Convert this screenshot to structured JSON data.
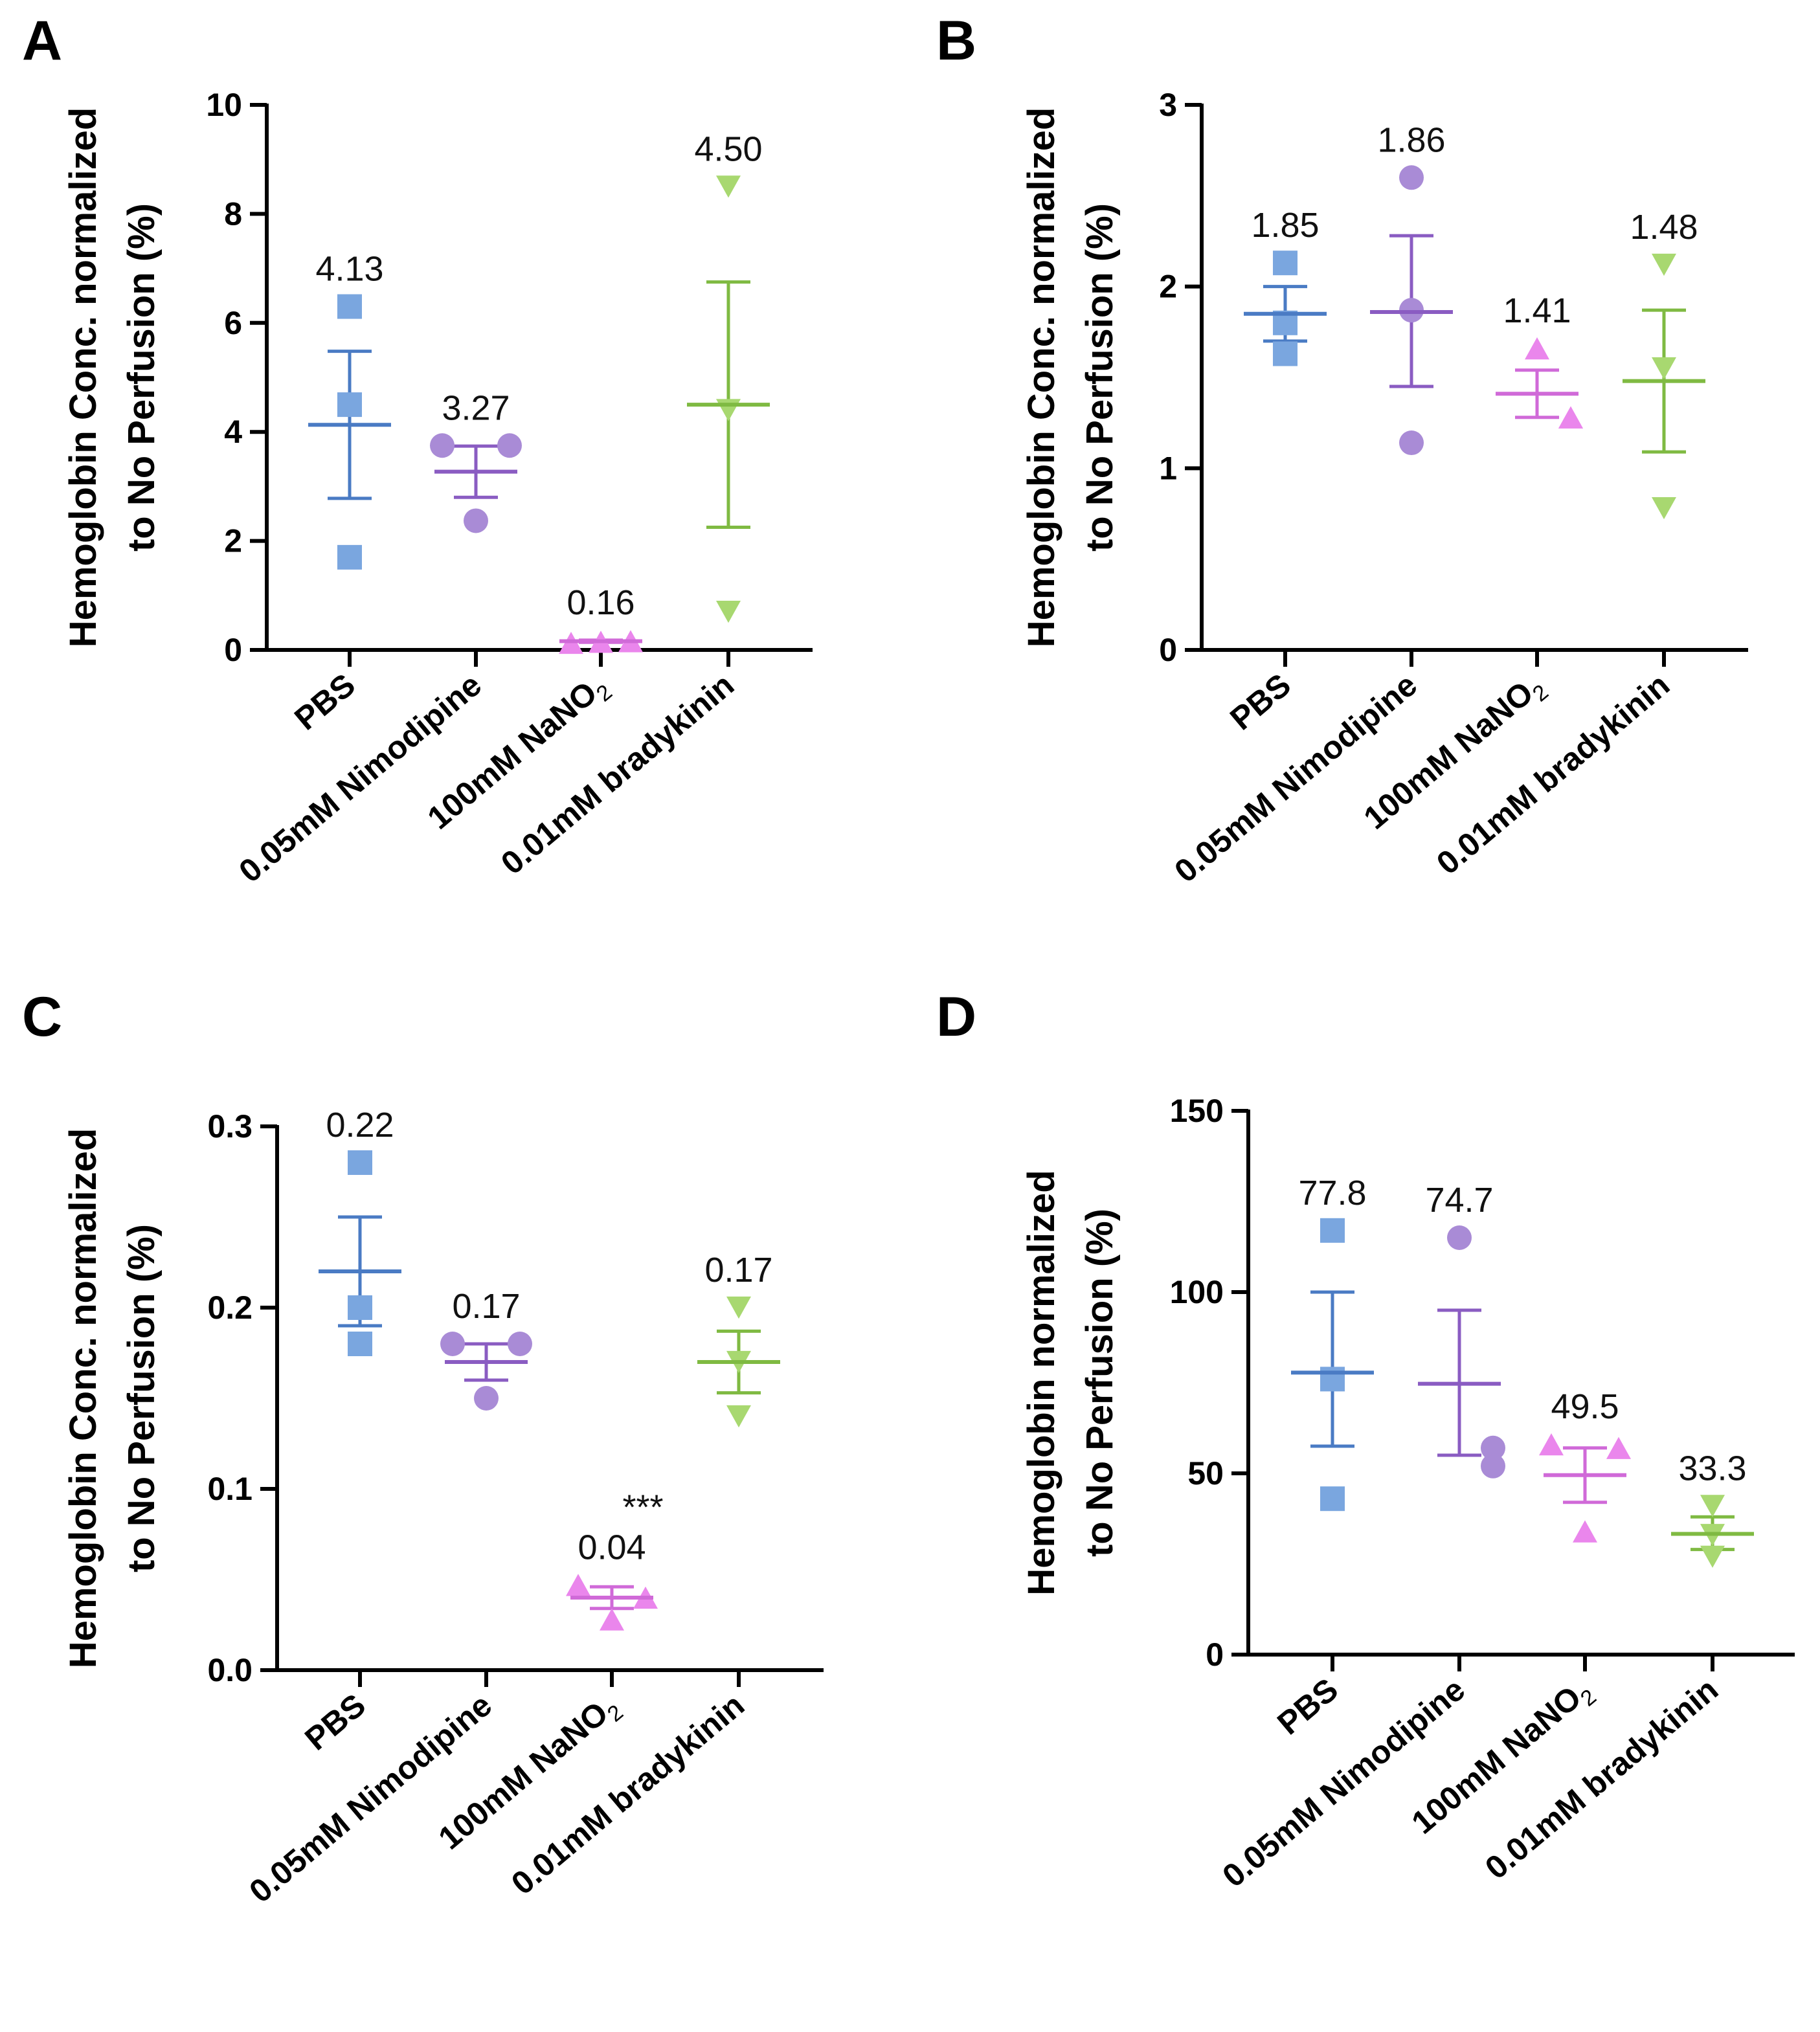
{
  "colors": {
    "PBS": "#4a7bc4",
    "PBS_marker": "#7aa6df",
    "Nimodipine": "#8a5cc2",
    "Nimodipine_marker": "#a98bd6",
    "NaNO2": "#d06ad8",
    "NaNO2_marker": "#ea86ec",
    "bradykinin": "#7fba42",
    "bradykinin_marker": "#a8d870",
    "axis": "#000000"
  },
  "categories": [
    "PBS",
    "0.05mM Nimodipine",
    "100mM NaNO",
    "0.01mM bradykinin"
  ],
  "category_subscript": "2",
  "chart_data": [
    {
      "type": "scatter",
      "panel": "A",
      "ylabel_line1": "Hemoglobin Conc. normalized",
      "ylabel_line2": "to No Perfusion (%)",
      "ylim": [
        0,
        10
      ],
      "yticks": [
        "0",
        "2",
        "4",
        "6",
        "8",
        "10"
      ],
      "series": [
        {
          "name": "PBS",
          "marker": "square",
          "points": [
            6.3,
            4.5,
            1.7
          ],
          "mean": 4.13,
          "sem_low": 2.78,
          "sem_high": 5.48,
          "label": "4.13"
        },
        {
          "name": "0.05mM Nimodipine",
          "marker": "circle",
          "points": [
            3.75,
            3.75,
            2.37
          ],
          "mean": 3.27,
          "sem_low": 2.8,
          "sem_high": 3.74,
          "label": "3.27"
        },
        {
          "name": "100mM NaNO2",
          "marker": "triangle-up",
          "points": [
            0.13,
            0.15,
            0.16
          ],
          "mean": 0.16,
          "sem_low": 0.14,
          "sem_high": 0.18,
          "label": "0.16"
        },
        {
          "name": "0.01mM bradykinin",
          "marker": "triangle-down",
          "points": [
            8.5,
            4.4,
            0.7
          ],
          "mean": 4.5,
          "sem_low": 2.25,
          "sem_high": 6.75,
          "label": "4.50"
        }
      ]
    },
    {
      "type": "scatter",
      "panel": "B",
      "ylabel_line1": "Hemoglobin Conc. normalized",
      "ylabel_line2": "to No Perfusion (%)",
      "ylim": [
        0,
        3
      ],
      "yticks": [
        "0",
        "1",
        "2",
        "3"
      ],
      "series": [
        {
          "name": "PBS",
          "marker": "square",
          "points": [
            2.13,
            1.8,
            1.63
          ],
          "mean": 1.85,
          "sem_low": 1.7,
          "sem_high": 2.0,
          "label": "1.85"
        },
        {
          "name": "0.05mM Nimodipine",
          "marker": "circle",
          "points": [
            2.6,
            1.87,
            1.14
          ],
          "mean": 1.86,
          "sem_low": 1.45,
          "sem_high": 2.28,
          "label": "1.86"
        },
        {
          "name": "100mM NaNO2",
          "marker": "triangle-up",
          "points": [
            1.66,
            1.28,
            1.28
          ],
          "mean": 1.41,
          "sem_low": 1.28,
          "sem_high": 1.54,
          "label": "1.41"
        },
        {
          "name": "0.01mM bradykinin",
          "marker": "triangle-down",
          "points": [
            2.12,
            1.55,
            0.78
          ],
          "mean": 1.48,
          "sem_low": 1.09,
          "sem_high": 1.87,
          "label": "1.48"
        }
      ]
    },
    {
      "type": "scatter",
      "panel": "C",
      "ylabel_line1": "Hemoglobin Conc. normalized",
      "ylabel_line2": "to No Perfusion (%)",
      "ylim": [
        0,
        0.3
      ],
      "yticks": [
        "0.0",
        "0.1",
        "0.2",
        "0.3"
      ],
      "significance": "***",
      "significance_index": 2,
      "series": [
        {
          "name": "PBS",
          "marker": "square",
          "points": [
            0.28,
            0.2,
            0.18
          ],
          "mean": 0.22,
          "sem_low": 0.19,
          "sem_high": 0.25,
          "label": "0.22"
        },
        {
          "name": "0.05mM Nimodipine",
          "marker": "circle",
          "points": [
            0.18,
            0.18,
            0.15
          ],
          "mean": 0.17,
          "sem_low": 0.16,
          "sem_high": 0.18,
          "label": "0.17"
        },
        {
          "name": "100mM NaNO2",
          "marker": "triangle-up",
          "points": [
            0.047,
            0.028,
            0.04
          ],
          "mean": 0.04,
          "sem_low": 0.034,
          "sem_high": 0.046,
          "label": "0.04"
        },
        {
          "name": "0.01mM bradykinin",
          "marker": "triangle-down",
          "points": [
            0.2,
            0.17,
            0.14
          ],
          "mean": 0.17,
          "sem_low": 0.153,
          "sem_high": 0.187,
          "label": "0.17"
        }
      ]
    },
    {
      "type": "scatter",
      "panel": "D",
      "ylabel_line1": "Hemoglobin normalized",
      "ylabel_line2": "to No Perfusion (%)",
      "ylim": [
        0,
        150
      ],
      "yticks": [
        "0",
        "50",
        "100",
        "150"
      ],
      "series": [
        {
          "name": "PBS",
          "marker": "square",
          "points": [
            117,
            76,
            43
          ],
          "mean": 77.8,
          "sem_low": 57.5,
          "sem_high": 100,
          "label": "77.8"
        },
        {
          "name": "0.05mM Nimodipine",
          "marker": "circle",
          "points": [
            115,
            57,
            52
          ],
          "mean": 74.7,
          "sem_low": 55,
          "sem_high": 95,
          "label": "74.7"
        },
        {
          "name": "100mM NaNO2",
          "marker": "triangle-up",
          "points": [
            58,
            57,
            34
          ],
          "mean": 49.5,
          "sem_low": 42,
          "sem_high": 57,
          "label": "49.5"
        },
        {
          "name": "0.01mM bradykinin",
          "marker": "triangle-down",
          "points": [
            41,
            33,
            27
          ],
          "mean": 33.3,
          "sem_low": 29,
          "sem_high": 38,
          "label": "33.3"
        }
      ]
    }
  ]
}
